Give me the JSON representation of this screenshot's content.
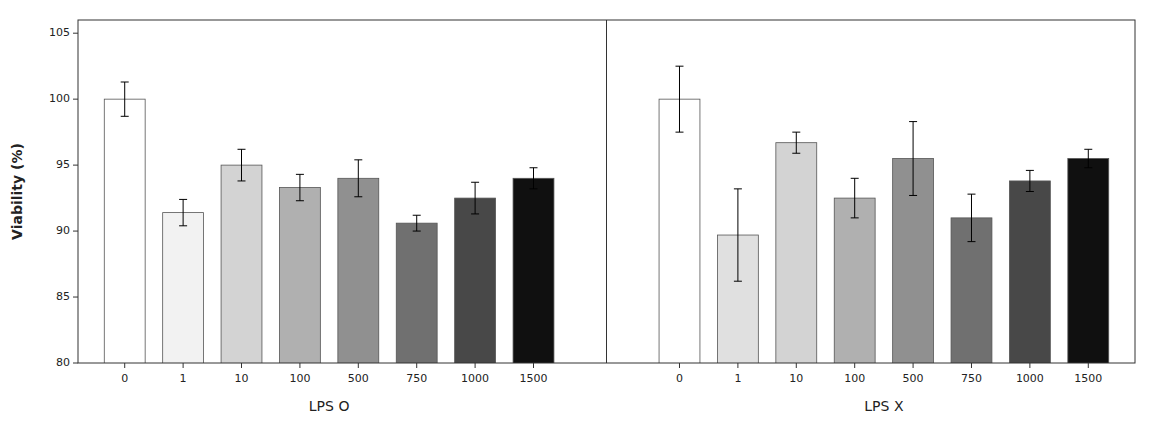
{
  "chart_data": {
    "type": "bar",
    "ylabel": "Viability (%)",
    "categories": [
      "0",
      "1",
      "10",
      "100",
      "500",
      "750",
      "1000",
      "1500"
    ],
    "series": [
      {
        "name": "LPS O",
        "values": [
          100.0,
          91.4,
          95.0,
          93.3,
          94.0,
          90.6,
          92.5,
          94.0
        ],
        "errors": [
          1.3,
          1.0,
          1.2,
          1.0,
          1.4,
          0.6,
          1.2,
          0.8
        ],
        "colors": [
          "#ffffff",
          "#f2f2f2",
          "#d3d3d3",
          "#b0b0b0",
          "#909090",
          "#707070",
          "#484848",
          "#101010"
        ]
      },
      {
        "name": "LPS X",
        "values": [
          100.0,
          89.7,
          96.7,
          92.5,
          95.5,
          91.0,
          93.8,
          95.5
        ],
        "errors": [
          2.5,
          3.5,
          0.8,
          1.5,
          2.8,
          1.8,
          0.8,
          0.7
        ],
        "colors": [
          "#ffffff",
          "#e0e0e0",
          "#d3d3d3",
          "#b0b0b0",
          "#909090",
          "#707070",
          "#484848",
          "#101010"
        ]
      }
    ],
    "ylim": [
      80,
      106
    ],
    "yticks": [
      80,
      85,
      90,
      95,
      100,
      105
    ],
    "grid": false
  }
}
